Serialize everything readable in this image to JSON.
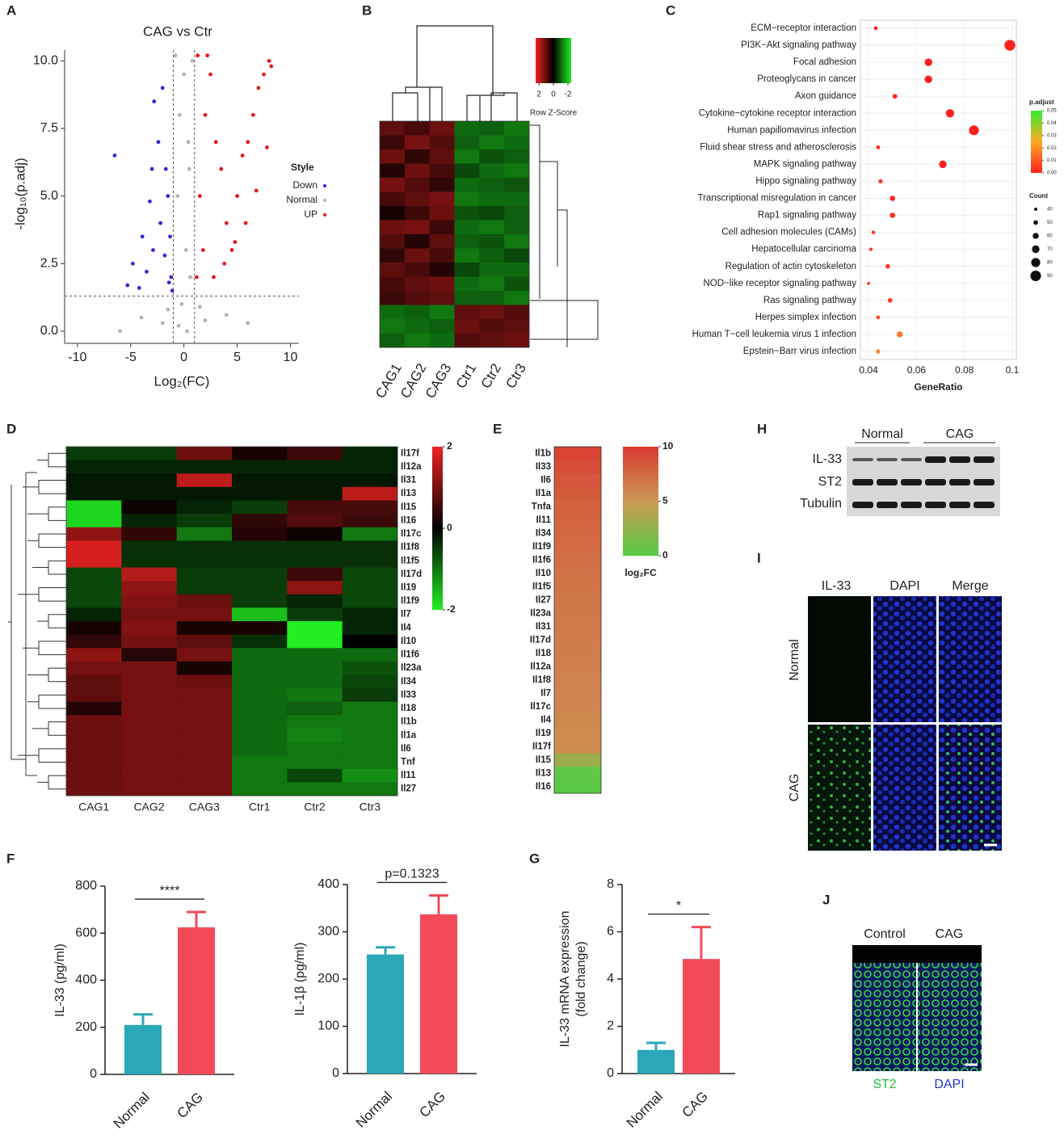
{
  "panel_letters": [
    "A",
    "B",
    "C",
    "D",
    "E",
    "F",
    "G",
    "H",
    "I",
    "J"
  ],
  "blot": {
    "groups": [
      "Normal",
      "CAG"
    ],
    "rows": [
      "IL-33",
      "ST2",
      "Tubulin"
    ]
  },
  "if_panel": {
    "columns": [
      "IL-33",
      "DAPI",
      "Merge"
    ],
    "rows": [
      "Normal",
      "CAG"
    ]
  },
  "j_panel": {
    "columns": [
      "Control",
      "CAG"
    ],
    "stains": [
      "ST2",
      "DAPI"
    ]
  },
  "chart_data": [
    {
      "type": "scatter",
      "title": "CAG vs Ctr",
      "xlabel": "Log₂(FC)",
      "ylabel": "-log₁₀(p.adj)",
      "xlim": [
        -11.2,
        10.8
      ],
      "ylim": [
        -0.45,
        10.4
      ],
      "xticks": [
        -10,
        -5,
        0,
        5,
        10
      ],
      "yticks": [
        {
          "value": 0,
          "label": "0.0"
        },
        2.5,
        {
          "value": 5,
          "label": "5.0"
        },
        7.5,
        {
          "value": 10,
          "label": "10.0"
        }
      ],
      "hlines": [
        1.3
      ],
      "vlines": [
        -1,
        1
      ],
      "legend_title": "Style",
      "series": [
        {
          "name": "Down",
          "color": "#2b2bd6",
          "x": [
            -6.5,
            -4.8,
            -3.9,
            -3.2,
            -2.8,
            -2.4,
            -2.0,
            -1.7,
            -1.5,
            -1.3,
            -1.2,
            -4.2,
            -3.5,
            -2.9,
            -2.2,
            -1.8,
            -1.4,
            -1.1,
            -5.3,
            -3.0
          ],
          "values": [
            6.5,
            2.5,
            3.5,
            4.8,
            8.5,
            7.0,
            9.0,
            6.0,
            5.0,
            3.5,
            2.0,
            1.6,
            2.2,
            3.0,
            4.0,
            2.8,
            1.8,
            1.5,
            1.7,
            6.0
          ]
        },
        {
          "name": "Normal",
          "color": "#b4b4b4",
          "x": [
            -0.8,
            -0.4,
            0,
            0.4,
            0.8,
            -0.6,
            0.2,
            0.6,
            -0.2,
            0.5,
            -2,
            -4,
            2,
            4,
            -6,
            6,
            -1.5,
            1.5,
            -0.5,
            0.3
          ],
          "values": [
            10.2,
            8,
            9.5,
            7,
            10,
            5,
            3,
            2,
            1,
            6,
            0.3,
            0.5,
            0.4,
            0.6,
            0,
            0.3,
            0.8,
            0.9,
            0.2,
            0
          ]
        },
        {
          "name": "UP",
          "color": "#e41a1c",
          "x": [
            1.2,
            1.5,
            2.0,
            2.5,
            3.0,
            3.5,
            4.0,
            4.5,
            5.0,
            5.5,
            6.0,
            6.5,
            7.0,
            7.5,
            8.0,
            8.2,
            1.8,
            2.8,
            3.8,
            4.8,
            5.8,
            6.8,
            7.8,
            1.3,
            2.2
          ],
          "values": [
            2,
            5,
            8,
            9.5,
            7,
            6,
            4,
            3,
            5,
            6.5,
            7,
            8,
            9,
            9.5,
            10,
            9.8,
            3,
            2,
            2.5,
            3.3,
            4,
            5.2,
            6.8,
            10.2,
            10.2
          ]
        }
      ]
    },
    {
      "type": "heatmap",
      "categories": [
        "CAG1",
        "CAG2",
        "CAG3",
        "Ctr1",
        "Ctr2",
        "Ctr3"
      ],
      "colormap": [
        "#22ee22",
        "#000000",
        "#ee2222"
      ],
      "vlim": [
        -2,
        2
      ],
      "cbar_ticks": [
        2,
        0,
        -2
      ],
      "cbar_title": "Row Z-Score",
      "values": [
        [
          0.8,
          0.6,
          0.9,
          -0.9,
          -0.8,
          -1.0
        ],
        [
          0.5,
          1.0,
          0.7,
          -0.8,
          -1.0,
          -0.9
        ],
        [
          0.9,
          0.4,
          0.8,
          -1.0,
          -0.7,
          -0.8
        ],
        [
          0.3,
          0.9,
          0.6,
          -0.6,
          -0.9,
          -1.0
        ],
        [
          1.0,
          0.7,
          0.4,
          -0.9,
          -0.8,
          -0.7
        ],
        [
          0.6,
          0.8,
          1.0,
          -1.0,
          -0.9,
          -0.9
        ],
        [
          0.2,
          0.5,
          0.9,
          -0.7,
          -0.6,
          -0.8
        ],
        [
          0.9,
          1.0,
          0.5,
          -0.9,
          -1.0,
          -0.8
        ],
        [
          0.7,
          0.3,
          0.8,
          -0.8,
          -0.7,
          -1.0
        ],
        [
          0.4,
          0.9,
          0.6,
          -1.0,
          -0.8,
          -0.6
        ],
        [
          0.8,
          0.6,
          0.3,
          -0.6,
          -0.9,
          -0.9
        ],
        [
          0.6,
          0.8,
          0.9,
          -0.9,
          -1.0,
          -0.7
        ],
        [
          0.5,
          0.7,
          0.8,
          -0.8,
          -0.8,
          -1.0
        ],
        [
          -0.9,
          -0.8,
          -1.0,
          0.8,
          0.9,
          0.7
        ],
        [
          -1.0,
          -0.9,
          -0.8,
          0.9,
          0.7,
          0.8
        ],
        [
          -0.8,
          -1.0,
          -0.9,
          0.7,
          0.8,
          0.9
        ]
      ]
    },
    {
      "type": "dot",
      "xlabel": "GeneRatio",
      "xlim": [
        0.0366,
        0.1017
      ],
      "xticks": [
        0.04,
        0.06,
        0.08,
        0.1
      ],
      "categories": [
        "ECM−receptor interaction",
        "PI3K−Akt signaling pathway",
        "Focal adhesion",
        "Proteoglycans in cancer",
        "Axon guidance",
        "Cytokine−cytokine receptor interaction",
        "Human papillomavirus infection",
        "Fluid shear stress and atherosclerosis",
        "MAPK signaling pathway",
        "Hippo signaling pathway",
        "Transcriptional misregulation in cancer",
        "Rap1 signaling pathway",
        "Cell adhesion molecules (CAMs)",
        "Hepatocellular carcinoma",
        "Regulation of actin cytoskeleton",
        "NOD−like receptor signaling pathway",
        "Ras signaling pathway",
        "Herpes simplex infection",
        "Human T−cell leukemia virus 1 infection",
        "Epstein−Barr virus infection"
      ],
      "values": [
        0.043,
        0.099,
        0.065,
        0.065,
        0.051,
        0.074,
        0.084,
        0.044,
        0.071,
        0.045,
        0.05,
        0.05,
        0.042,
        0.041,
        0.048,
        0.04,
        0.049,
        0.044,
        0.053,
        0.044
      ],
      "sizes": [
        45,
        92,
        70,
        70,
        50,
        75,
        85,
        45,
        70,
        47,
        55,
        55,
        43,
        42,
        50,
        40,
        50,
        45,
        58,
        47
      ],
      "p_adjust": [
        0.002,
        0.0,
        0.0,
        0.0,
        0.001,
        0.0,
        0.0,
        0.003,
        0.0,
        0.003,
        0.002,
        0.002,
        0.004,
        0.005,
        0.004,
        0.006,
        0.005,
        0.008,
        0.015,
        0.018
      ],
      "colormap": [
        "#ff2020",
        "#ffaa22",
        "#33ee33"
      ],
      "vlim": [
        0,
        0.05
      ],
      "color_legend": {
        "title": "p.adjust",
        "ticks": [
          0.05,
          0.04,
          0.03,
          0.02,
          0.01,
          {
            "value": 0,
            "label": "0.00"
          }
        ]
      },
      "size_legend": {
        "title": "Count",
        "ticks": [
          40,
          50,
          60,
          70,
          80,
          90
        ]
      }
    },
    {
      "type": "heatmap",
      "categories": [
        "CAG1",
        "CAG2",
        "CAG3",
        "Ctr1",
        "Ctr2",
        "Ctr3"
      ],
      "rows": [
        "Il17f",
        "Il12a",
        "Il31",
        "Il13",
        "Il15",
        "Il16",
        "Il17c",
        "Il1f8",
        "Il1f5",
        "Il17d",
        "Il19",
        "Il1f9",
        "Il7",
        "Il4",
        "Il10",
        "Il1f6",
        "Il23a",
        "Il34",
        "Il33",
        "Il18",
        "Il1b",
        "Il1a",
        "Il6",
        "Tnf",
        "Il11",
        "Il27"
      ],
      "colormap": [
        "#22ee22",
        "#000000",
        "#ee2222"
      ],
      "vlim": [
        -2,
        2
      ],
      "cbar_ticks": [
        2,
        0,
        -2
      ],
      "values": [
        [
          -0.5,
          -0.5,
          0.9,
          0.2,
          0.5,
          -0.3
        ],
        [
          -0.3,
          -0.3,
          -0.3,
          -0.3,
          -0.3,
          -0.3
        ],
        [
          -0.2,
          -0.2,
          1.6,
          -0.2,
          -0.2,
          -0.2
        ],
        [
          -0.2,
          -0.2,
          -0.2,
          -0.2,
          -0.2,
          1.6
        ],
        [
          -1.8,
          0.1,
          -0.3,
          -0.5,
          0.6,
          0.6
        ],
        [
          -1.8,
          -0.3,
          -0.5,
          0.4,
          0.7,
          0.5
        ],
        [
          1.2,
          0.4,
          -1.0,
          0.3,
          0.1,
          -1.0
        ],
        [
          1.8,
          -0.4,
          -0.4,
          -0.4,
          -0.4,
          -0.4
        ],
        [
          1.8,
          -0.4,
          -0.4,
          -0.4,
          -0.4,
          -0.4
        ],
        [
          -0.6,
          1.5,
          -0.5,
          -0.5,
          0.5,
          -0.6
        ],
        [
          -0.6,
          1.2,
          -0.5,
          -0.5,
          1.2,
          -0.6
        ],
        [
          -0.6,
          1.1,
          0.9,
          -0.5,
          -0.3,
          -0.6
        ],
        [
          -0.3,
          1.0,
          1.0,
          -1.6,
          -0.5,
          -0.3
        ],
        [
          0.2,
          1.1,
          0.2,
          0.2,
          -2,
          -0.3
        ],
        [
          0.4,
          1.0,
          0.8,
          -0.4,
          -2,
          0.0
        ],
        [
          1.2,
          0.3,
          1.0,
          -0.9,
          -0.9,
          -0.9
        ],
        [
          1.0,
          1.0,
          0.2,
          -0.9,
          -0.9,
          -0.7
        ],
        [
          0.8,
          1.0,
          0.9,
          -0.9,
          -0.9,
          -0.6
        ],
        [
          0.8,
          1.0,
          1.0,
          -0.9,
          -1.0,
          -0.5
        ],
        [
          0.3,
          1.0,
          1.0,
          -0.9,
          -0.8,
          -1.0
        ],
        [
          0.9,
          1.0,
          1.0,
          -0.9,
          -1.0,
          -1.0
        ],
        [
          0.9,
          1.0,
          1.0,
          -0.9,
          -1.1,
          -1.0
        ],
        [
          0.9,
          1.0,
          1.0,
          -0.9,
          -1.0,
          -1.0
        ],
        [
          0.9,
          1.0,
          1.0,
          -1.0,
          -1.0,
          -1.0
        ],
        [
          0.9,
          1.0,
          1.0,
          -1.0,
          -0.6,
          -1.2
        ],
        [
          0.9,
          1.0,
          1.0,
          -1.0,
          -1.0,
          -1.0
        ]
      ]
    },
    {
      "type": "heatmap",
      "rows": [
        "Il1b",
        "Il33",
        "Il6",
        "Il1a",
        "Tnfa",
        "Il11",
        "Il34",
        "Il1f9",
        "Il1f6",
        "Il10",
        "Il1f5",
        "Il27",
        "Il23a",
        "Il31",
        "Il17d",
        "Il18",
        "Il12a",
        "Il1f8",
        "Il7",
        "Il17c",
        "Il4",
        "Il19",
        "Il17f",
        "Il15",
        "Il13",
        "Il16"
      ],
      "colormap": [
        "#55cc44",
        "#cc9955",
        "#d83a30"
      ],
      "vlim": [
        0,
        10
      ],
      "cbar_ticks": [
        10,
        5,
        0
      ],
      "cbar_title": "log₂FC",
      "values": [
        [
          9.5
        ],
        [
          9.0
        ],
        [
          8.5
        ],
        [
          8.2
        ],
        [
          8.0
        ],
        [
          7.8
        ],
        [
          7.6
        ],
        [
          7.4
        ],
        [
          7.2
        ],
        [
          7.0
        ],
        [
          6.9
        ],
        [
          6.8
        ],
        [
          6.7
        ],
        [
          6.6
        ],
        [
          6.5
        ],
        [
          6.4
        ],
        [
          6.3
        ],
        [
          6.2
        ],
        [
          6.1
        ],
        [
          6.0
        ],
        [
          5.9
        ],
        [
          5.8
        ],
        [
          5.7
        ],
        [
          3.0
        ],
        [
          0.5
        ],
        [
          0.3
        ]
      ]
    },
    {
      "type": "bar",
      "ylabel": [
        "IL-33 (pg/ml)"
      ],
      "categories": [
        "Normal",
        "CAG"
      ],
      "values": [
        210,
        625
      ],
      "errors": [
        45,
        65
      ],
      "colors": [
        "#2aa8b8",
        "#f24b57"
      ],
      "ylim": [
        0,
        800
      ],
      "yticks": [
        0,
        200,
        400,
        600,
        800
      ],
      "annotation": "****"
    },
    {
      "type": "bar",
      "ylabel": [
        "IL-1β (pg/ml)"
      ],
      "categories": [
        "Normal",
        "CAG"
      ],
      "values": [
        252,
        337
      ],
      "errors": [
        15,
        40
      ],
      "colors": [
        "#2aa8b8",
        "#f24b57"
      ],
      "ylim": [
        0,
        400
      ],
      "yticks": [
        0,
        100,
        200,
        300,
        400
      ],
      "annotation": "p=0.1323"
    },
    {
      "type": "bar",
      "ylabel": [
        "IL-33 mRNA expression",
        "(fold change)"
      ],
      "categories": [
        "Normal",
        "CAG"
      ],
      "values": [
        1.0,
        4.85
      ],
      "errors": [
        0.3,
        1.35
      ],
      "colors": [
        "#2aa8b8",
        "#f24b57"
      ],
      "ylim": [
        0,
        8
      ],
      "yticks": [
        0,
        2,
        4,
        6,
        8
      ],
      "annotation": "*"
    }
  ]
}
